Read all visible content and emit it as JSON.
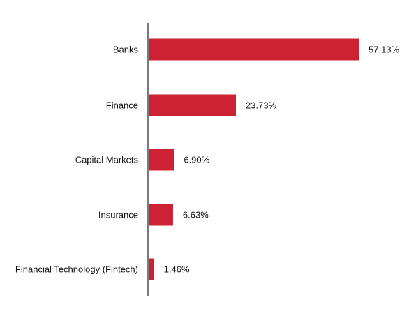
{
  "chart_data": {
    "type": "bar",
    "orientation": "horizontal",
    "title": "",
    "xlabel": "",
    "ylabel": "",
    "categories": [
      "Banks",
      "Finance",
      "Capital Markets",
      "Insurance",
      "Financial Technology (Fintech)"
    ],
    "values": [
      57.13,
      23.73,
      6.9,
      6.63,
      1.46
    ],
    "value_labels": [
      "57.13%",
      "23.73%",
      "6.90%",
      "6.63%",
      "1.46%"
    ],
    "xlim": [
      0,
      57.13
    ],
    "grid": false,
    "legend": "none",
    "colors": {
      "bar": "#cc2233",
      "axis": "#7a7a7a",
      "text": "#111111"
    }
  }
}
